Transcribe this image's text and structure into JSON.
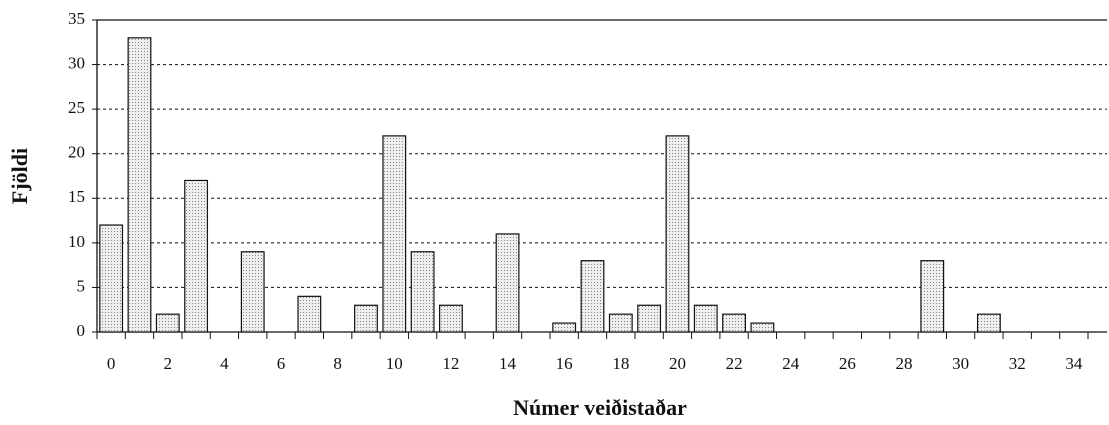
{
  "chart_data": {
    "type": "bar",
    "xlabel": "Númer veiðistaðar",
    "ylabel": "Fjöldi",
    "categories": [
      0,
      null,
      2,
      null,
      4,
      null,
      6,
      null,
      8,
      null,
      10,
      null,
      12,
      null,
      14,
      null,
      16,
      null,
      18,
      null,
      20,
      null,
      22,
      null,
      24,
      null,
      26,
      null,
      28,
      null,
      30,
      null,
      32,
      null,
      34
    ],
    "values": [
      12,
      33,
      2,
      17,
      0,
      9,
      0,
      4,
      0,
      3,
      22,
      9,
      3,
      0,
      11,
      0,
      1,
      8,
      2,
      3,
      22,
      3,
      2,
      1,
      0,
      0,
      0,
      0,
      0,
      8,
      0,
      2,
      0,
      0,
      0
    ],
    "color": "#dcdcdc",
    "ylim": [
      0,
      35
    ],
    "yticks": [
      0,
      5,
      10,
      15,
      20,
      25,
      30,
      35
    ],
    "grid": true
  }
}
